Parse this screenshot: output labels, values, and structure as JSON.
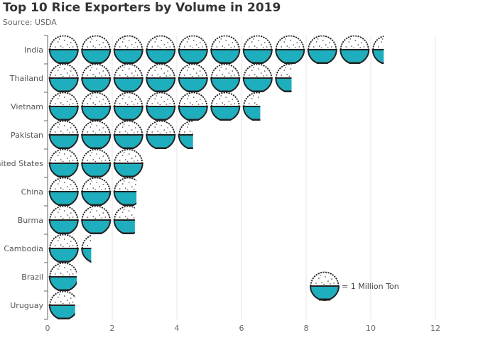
{
  "chart_data": {
    "type": "bar",
    "orientation": "horizontal",
    "style": "pictorial",
    "title": "Top 10 Rice Exporters by Volume in 2019",
    "subtitle": "Source: USDA",
    "xlabel": "",
    "ylabel": "",
    "categories": [
      "India",
      "Thailand",
      "Vietnam",
      "Pakistan",
      "United States",
      "China",
      "Burma",
      "Cambodia",
      "Brazil",
      "Uruguay"
    ],
    "values": [
      10.4,
      7.55,
      6.58,
      4.5,
      3.0,
      2.75,
      2.7,
      1.35,
      0.9,
      0.85
    ],
    "xlim": [
      0,
      12
    ],
    "xticks": [
      0,
      2,
      4,
      6,
      8,
      10,
      12
    ],
    "grid": "vertical",
    "symbol": "rice-bowl-icon",
    "unit_value": 1,
    "legend": {
      "label": "= 1 Million Ton",
      "placement": "bottom-right"
    },
    "colors": {
      "bowl_fill": "#1eaebd",
      "bowl_stroke": "#222222",
      "grid": "#e6e6e6",
      "axis": "#666666"
    }
  }
}
